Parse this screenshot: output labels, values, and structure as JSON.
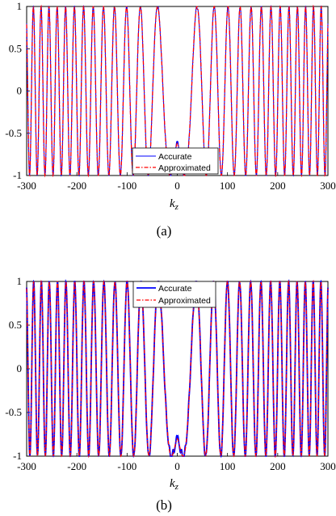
{
  "chart_data": [
    {
      "type": "line",
      "caption": "(a)",
      "xlabel": "k",
      "xlabel_sub": "z",
      "xlim": [
        -300,
        300
      ],
      "ylim": [
        -1,
        1
      ],
      "xticks": [
        "-300",
        "-200",
        "-100",
        "0",
        "100",
        "200",
        "300"
      ],
      "yticks": [
        "1",
        "0.5",
        "0",
        "-0.5",
        "-1"
      ],
      "legend_position": "bottom-center",
      "center_value": -0.62,
      "wobble_amplitude": 0.03,
      "series": [
        {
          "name": "Accurate",
          "color": "#0000ff",
          "style": "solid"
        },
        {
          "name": "Approximated",
          "color": "#ff0000",
          "style": "dashdot"
        }
      ]
    },
    {
      "type": "line",
      "caption": "(b)",
      "xlabel": "k",
      "xlabel_sub": "z",
      "xlim": [
        -300,
        300
      ],
      "ylim": [
        -1,
        1
      ],
      "xticks": [
        "-300",
        "-200",
        "-100",
        "0",
        "100",
        "200",
        "300"
      ],
      "yticks": [
        "1",
        "0.5",
        "0",
        "-0.5",
        "-1"
      ],
      "legend_position": "top-right",
      "center_value": -0.8,
      "wobble_amplitude": 0.04,
      "series": [
        {
          "name": "Accurate",
          "color": "#0000ff",
          "style": "solid"
        },
        {
          "name": "Approximated",
          "color": "#ff0000",
          "style": "dashdot"
        }
      ]
    }
  ]
}
